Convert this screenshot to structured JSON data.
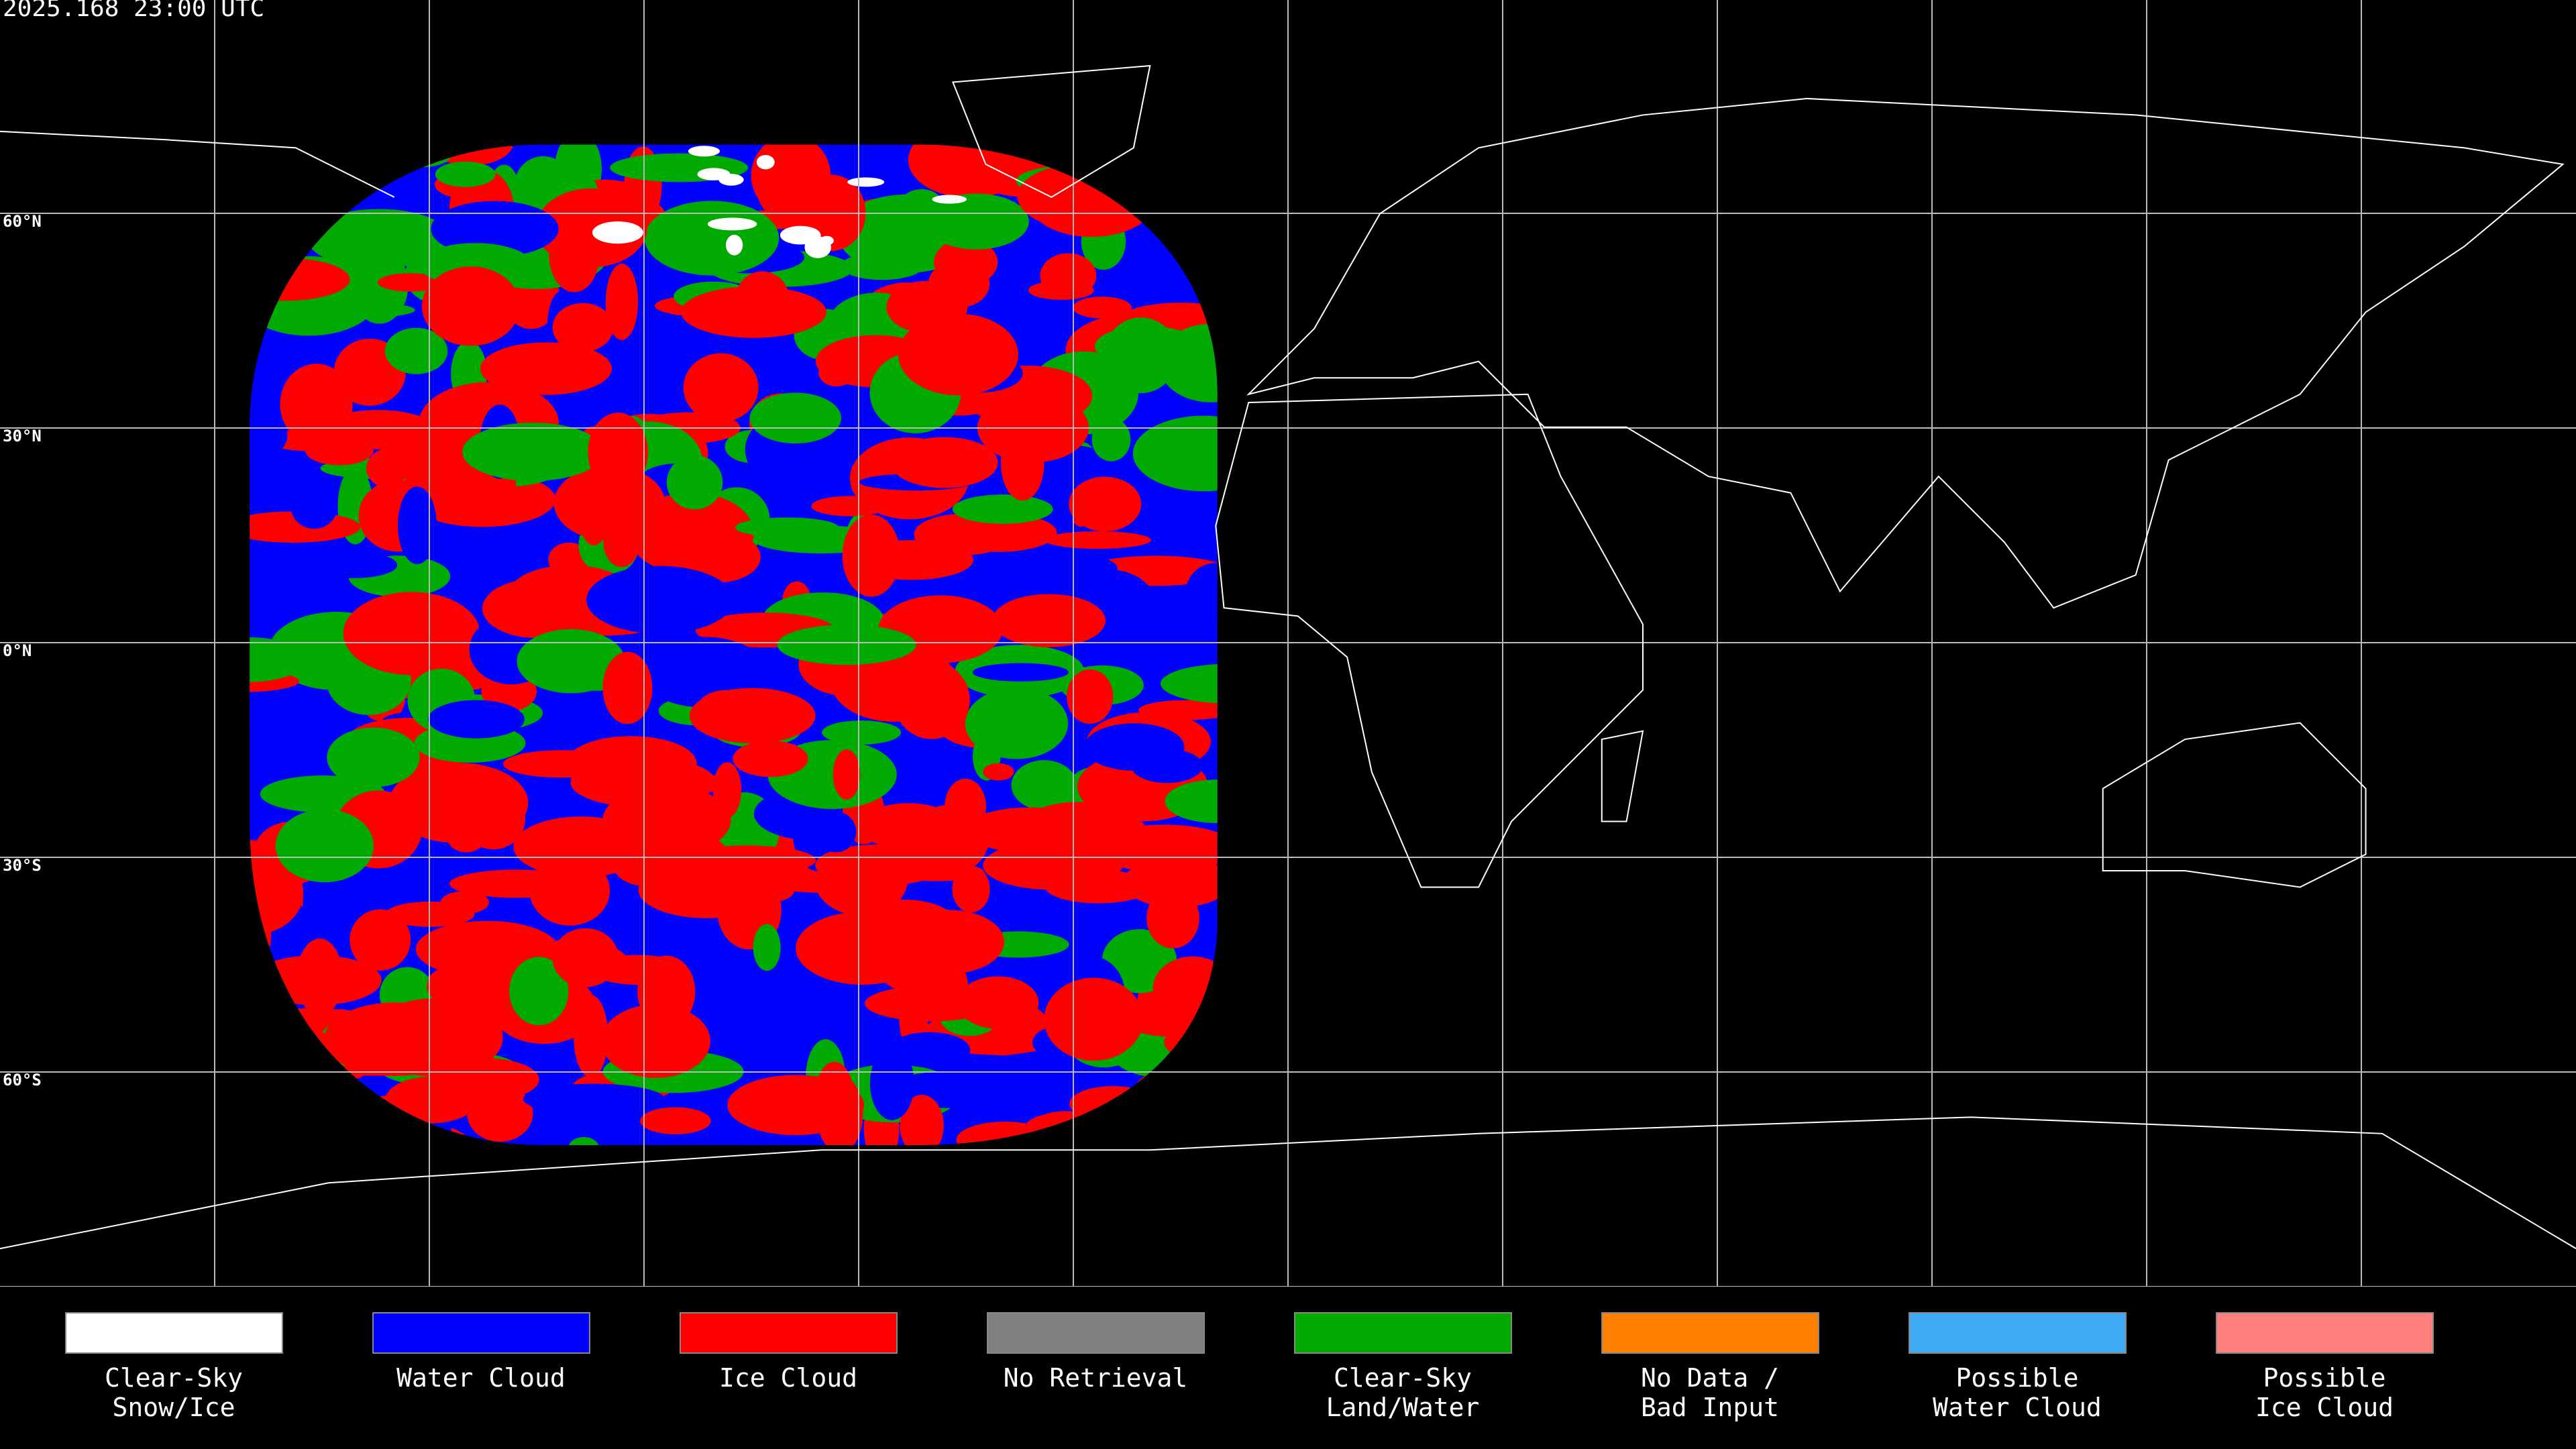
{
  "title": "2025.168 23:00 UTC",
  "latitude_labels": [
    "60°N",
    "30°N",
    "0°N",
    "30°S",
    "60°S"
  ],
  "legend": [
    {
      "label": [
        "Clear-Sky",
        "Snow/Ice"
      ],
      "color": "#ffffff"
    },
    {
      "label": [
        "Water Cloud"
      ],
      "color": "#0000ff"
    },
    {
      "label": [
        "Ice Cloud"
      ],
      "color": "#ff0000"
    },
    {
      "label": [
        "No Retrieval"
      ],
      "color": "#808080"
    },
    {
      "label": [
        "Clear-Sky",
        "Land/Water"
      ],
      "color": "#00aa00"
    },
    {
      "label": [
        "No Data /",
        "Bad Input"
      ],
      "color": "#ff7f00"
    },
    {
      "label": [
        "Possible",
        "Water Cloud"
      ],
      "color": "#3fa9f5"
    },
    {
      "label": [
        "Possible",
        "Ice Cloud"
      ],
      "color": "#ff7f7f"
    }
  ]
}
